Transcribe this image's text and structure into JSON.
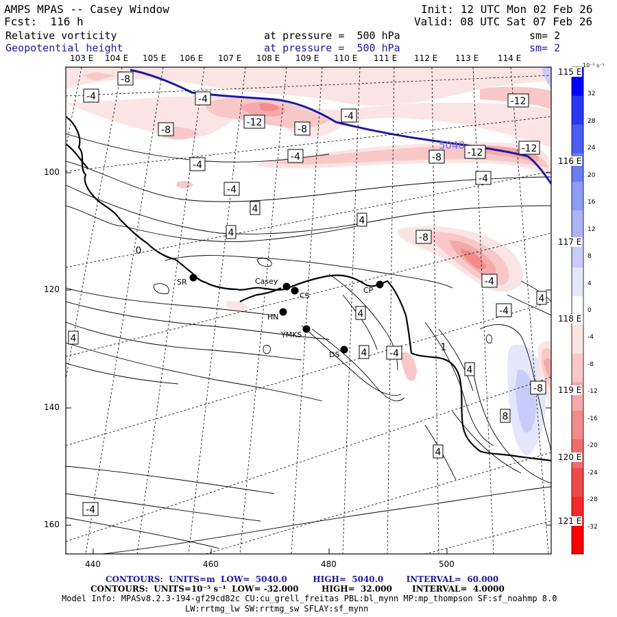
{
  "header": {
    "title": "AMPS MPAS -- Casey Window",
    "forecast": "Fcst:  116 h",
    "init": "Init: 12 UTC Mon 02 Feb 26",
    "valid": "Valid: 08 UTC Sat 07 Feb 26",
    "field1": {
      "name": "Relative vorticity",
      "level": "at pressure =  500 hPa",
      "smooth": "sm= 2"
    },
    "field2": {
      "name": "Geopotential height",
      "level": "at pressure =  500 hPa",
      "smooth": "sm= 2"
    }
  },
  "top_longitudes": [
    "103 E",
    "104 E",
    "105 E",
    "106 E",
    "107 E",
    "108 E",
    "109 E",
    "110 E",
    "111 E",
    "112 E",
    "113 E",
    "114 E"
  ],
  "right_longitudes": [
    "115 E",
    "116 E",
    "117 E",
    "118 E",
    "119 E",
    "120 E",
    "121 E"
  ],
  "y_axis": [
    "100",
    "120",
    "140",
    "160"
  ],
  "x_axis": [
    "440",
    "460",
    "480",
    "500"
  ],
  "colorbar": {
    "unit": "10⁻⁵ s⁻¹",
    "labels": [
      "32",
      "28",
      "24",
      "20",
      "16",
      "12",
      "8",
      "4",
      "0",
      "-4",
      "-8",
      "-12",
      "-16",
      "-20",
      "-24",
      "-28",
      "-32"
    ],
    "colors": [
      "#0000ff",
      "#2a36f4",
      "#4a5cf2",
      "#6a7cf2",
      "#8c9cf4",
      "#aab4f6",
      "#c8ccf8",
      "#e4e6fb",
      "#ffffff",
      "#fbe4e4",
      "#f8c8c8",
      "#f4aaaa",
      "#f28c8c",
      "#f06c6c",
      "#ee4a4a",
      "#f22a2a",
      "#ff0000"
    ]
  },
  "stations": [
    {
      "label": "SR"
    },
    {
      "label": "Casey"
    },
    {
      "label": "CS"
    },
    {
      "label": "CP"
    },
    {
      "label": "HN"
    },
    {
      "label": "YMKS"
    },
    {
      "label": "DS"
    }
  ],
  "contour_labels": [
    "-8",
    "-4",
    "-4",
    "-12",
    "-8",
    "-4",
    "-8",
    "-4",
    "-4",
    "-8",
    "-4",
    "-12",
    "-12",
    "-12",
    "-8",
    "-4",
    "4",
    "4",
    "-4",
    "-8",
    "-12",
    "4",
    "-4",
    "4",
    "4",
    "4",
    "-4",
    "4",
    "4",
    "-8",
    "8",
    "4",
    "-4",
    "0",
    "1"
  ],
  "height_contour_label": "5040",
  "footer": {
    "line1": "CONTOURS:  UNITS=m  LOW=  5040.0         HIGH=  5040.0        INTERVAL=  60.000",
    "line2": "CONTOURS:  UNITS=10⁻⁵ s⁻¹  LOW= -32.000        HIGH=  32.000       INTERVAL=  4.0000",
    "line3": "Model Info: MPASv8.2.3-194-gf29cd82c CU:cu_grell_freitas PBL:bl_mynn MP:mp_thompson SF:sf_noahmp 8.0",
    "line4": "LW:rrtmg_lw SW:rrtmg_sw SFLAY:sf_mynn"
  }
}
